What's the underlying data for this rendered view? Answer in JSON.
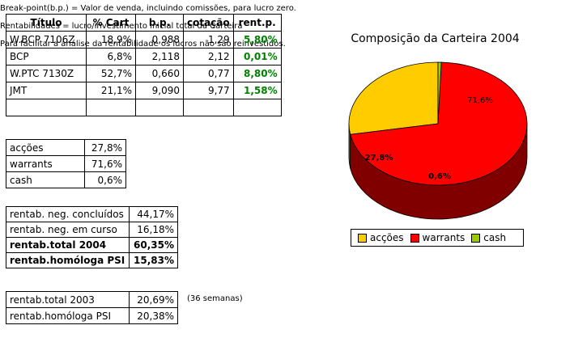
{
  "holdings": {
    "headers": [
      "Título",
      "% Cart",
      "b.p.",
      "cotação",
      "rent.p."
    ],
    "rows": [
      {
        "titulo": "W.BCP 7106Z",
        "cart": "18,9%",
        "bp": "0,988",
        "cotacao": "1,29",
        "rent": "5,80%"
      },
      {
        "titulo": "BCP",
        "cart": "6,8%",
        "bp": "2,118",
        "cotacao": "2,12",
        "rent": "0,01%"
      },
      {
        "titulo": "W.PTC 7130Z",
        "cart": "52,7%",
        "bp": "0,660",
        "cotacao": "0,77",
        "rent": "8,80%"
      },
      {
        "titulo": "JMT",
        "cart": "21,1%",
        "bp": "9,090",
        "cotacao": "9,77",
        "rent": "1,58%"
      }
    ]
  },
  "allocation": [
    {
      "label": "acções",
      "value": "27,8%"
    },
    {
      "label": "warrants",
      "value": "71,6%"
    },
    {
      "label": "cash",
      "value": "0,6%"
    }
  ],
  "returns": [
    {
      "label": "rentab. neg. concluídos",
      "value": "44,17%"
    },
    {
      "label": "rentab. neg. em curso",
      "value": "16,18%"
    },
    {
      "label": "rentab.total 2004",
      "value": "60,35%"
    },
    {
      "label": "rentab.homóloga PSI",
      "value": "15,83%"
    }
  ],
  "previous": [
    {
      "label": "rentab.total 2003",
      "value": "20,69%"
    },
    {
      "label": "rentab.homóloga PSI",
      "value": "20,38%"
    }
  ],
  "weeks_note": "(36 semanas)",
  "notes": [
    "Break-point(b.p.) = Valor de venda, incluindo comissões, para lucro zero.",
    "Rentabilidades = lucro/investimento inicial total da Carteira",
    "Para facilitar a análise da rentabilidade os lucros não são reinvestidos."
  ],
  "chart_data": {
    "type": "pie",
    "title": "Composição da Carteira 2004",
    "categories": [
      "acções",
      "warrants",
      "cash"
    ],
    "values": [
      27.8,
      71.6,
      0.6
    ],
    "labels": [
      "27,8%",
      "71,6%",
      "0,6%"
    ],
    "colors": [
      "#ffcc00",
      "#ff0000",
      "#99cc00"
    ],
    "side_colors": [
      "#807000",
      "#800000",
      "#4d6600"
    ],
    "legend": "bottom"
  }
}
